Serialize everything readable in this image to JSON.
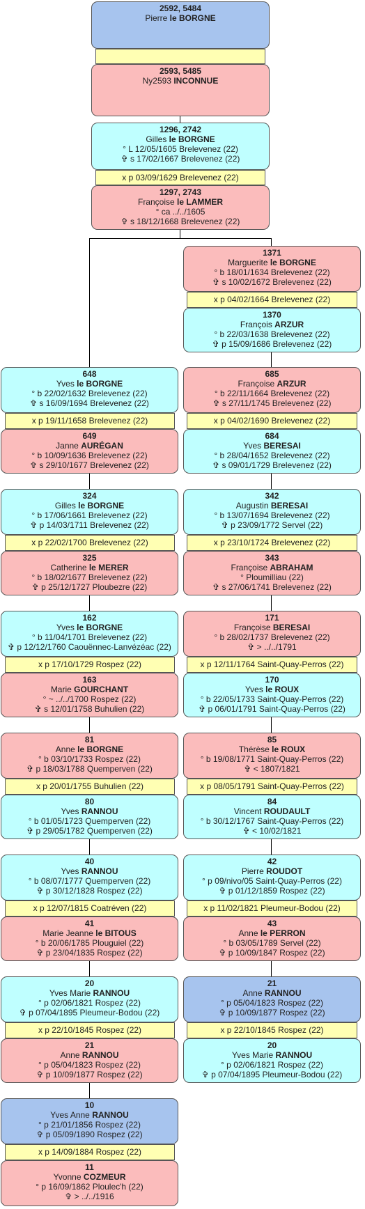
{
  "top": [
    {
      "num": "2592, 5484",
      "first": "Pierre",
      "last": "le BORGNE",
      "events": []
    },
    {
      "num": "2593, 5485",
      "first": "Ny2593",
      "last": "INCONNUE",
      "events": []
    },
    {
      "num": "1296, 2742",
      "first": "Gilles",
      "last": "le BORGNE",
      "events": [
        "° L 12/05/1605 Brelevenez (22)",
        "✞ s 17/02/1667 Brelevenez (22)"
      ]
    },
    {
      "num": "1297, 2743",
      "first": "Françoise",
      "last": "le LAMMER",
      "events": [
        "° ca ../../1605",
        "✞ s 18/12/1668 Brelevenez (22)"
      ]
    }
  ],
  "top_marriage": "x p 03/09/1629 Brelevenez (22)",
  "left": [
    {
      "num": "648",
      "first": "Yves",
      "last": "le BORGNE",
      "events": [
        "° b 22/02/1632 Brelevenez (22)",
        "✞ s 16/09/1694 Brelevenez (22)"
      ]
    },
    {
      "num": "",
      "first": "Janne",
      "last": "AURÉGAN",
      "events": [
        "° b 10/09/1636 Brelevenez (22)",
        "✞ s 29/10/1677 Brelevenez (22)"
      ]
    },
    {
      "num": "324",
      "first": "Gilles",
      "last": "le BORGNE",
      "events": [
        "° b 17/06/1661 Brelevenez (22)",
        "✞ p 14/03/1711 Brelevenez (22)"
      ]
    },
    {
      "num": "325",
      "first": "Catherine",
      "last": "le MERER",
      "events": [
        "° b 18/02/1677 Brelevenez (22)",
        "✞ p 25/12/1727 Ploubezre (22)"
      ]
    },
    {
      "num": "162",
      "first": "Yves",
      "last": "le BORGNE",
      "events": [
        "° b 11/04/1701 Brelevenez (22)",
        "✞ p 12/12/1760 Caouënnec-Lanvézéac (22)"
      ]
    },
    {
      "num": "163",
      "first": "Marie",
      "last": "GOURCHANT",
      "events": [
        "° ~ ../../1700 Rospez (22)",
        "✞ s 12/01/1758 Buhulien (22)"
      ]
    },
    {
      "num": "81",
      "first": "Anne",
      "last": "le BORGNE",
      "events": [
        "° b 03/10/1733 Rospez (22)",
        "✞ p 18/03/1788 Quemperven (22)"
      ]
    },
    {
      "num": "80",
      "first": "Yves",
      "last": "RANNOU",
      "events": [
        "° b 01/05/1723 Quemperven (22)",
        "✞ p 29/05/1782 Quemperven (22)"
      ]
    },
    {
      "num": "40",
      "first": "Yves",
      "last": "RANNOU",
      "events": [
        "° b 08/07/1777 Quemperven (22)",
        "✞ p 30/12/1828 Rospez (22)"
      ]
    },
    {
      "num": "41",
      "first": "Marie Jeanne",
      "last": "le BITOUS",
      "events": [
        "° b 20/06/1785 Plouguiel (22)",
        "✞ p 23/04/1835 Rospez (22)"
      ]
    },
    {
      "num": "20",
      "first": "Yves Marie",
      "last": "RANNOU",
      "events": [
        "° p 02/06/1821 Rospez (22)",
        "✞ p 07/04/1895 Pleumeur-Bodou (22)"
      ]
    },
    {
      "num": "21",
      "first": "Anne",
      "last": "RANNOU",
      "events": [
        "° p 05/04/1823 Rospez (22)",
        "✞ p 10/09/1877 Rospez (22)"
      ]
    },
    {
      "num": "10",
      "first": "Yves Anne",
      "last": "RANNOU",
      "events": [
        "° p 21/01/1856 Rospez (22)",
        "✞ p 05/09/1890 Rospez (22)"
      ]
    },
    {
      "num": "11",
      "first": "Yvonne",
      "last": "COZMEUR",
      "events": [
        "° p 16/09/1862 Ploulec'h (22)",
        "✞ > ../../1916"
      ]
    }
  ],
  "left_num_649": "649",
  "left_marriages": [
    "x p 19/11/1658 Brelevenez (22)",
    "x p 22/02/1700 Brelevenez (22)",
    "x p 17/10/1729 Rospez (22)",
    "x p 20/01/1755 Buhulien (22)",
    "x p 12/07/1815 Coatréven (22)",
    "x p 22/10/1845 Rospez (22)",
    "x p 14/09/1884 Rospez (22)"
  ],
  "right": [
    {
      "num": "1371",
      "first": "Marguerite",
      "last": "le BORGNE",
      "events": [
        "° b 18/01/1634 Brelevenez (22)",
        "✞ s 10/02/1672 Brelevenez (22)"
      ]
    },
    {
      "num": "1370",
      "first": "François",
      "last": "ARZUR",
      "events": [
        "° b 22/03/1638 Brelevenez (22)",
        "✞ p 15/09/1686 Brelevenez (22)"
      ]
    },
    {
      "num": "685",
      "first": "Françoise",
      "last": "ARZUR",
      "events": [
        "° b 22/11/1664 Brelevenez (22)",
        "✞ s 27/11/1745 Brelevenez (22)"
      ]
    },
    {
      "num": "684",
      "first": "Yves",
      "last": "BERESAI",
      "events": [
        "° b 28/04/1652 Brelevenez (22)",
        "✞ s 09/01/1729 Brelevenez (22)"
      ]
    },
    {
      "num": "342",
      "first": "Augustin",
      "last": "BERESAI",
      "events": [
        "° b 13/07/1694 Brelevenez (22)",
        "✞ p 23/09/1772 Servel (22)"
      ]
    },
    {
      "num": "343",
      "first": "Françoise",
      "last": "ABRAHAM",
      "events": [
        "° Ploumilliau (22)",
        "✞ s 27/06/1741 Brelevenez (22)"
      ]
    },
    {
      "num": "171",
      "first": "Françoise",
      "last": "BERESAI",
      "events": [
        "° b 28/02/1737 Brelevenez (22)",
        "✞ > ../../1791"
      ]
    },
    {
      "num": "170",
      "first": "Yves",
      "last": "le ROUX",
      "events": [
        "° b 22/05/1733 Saint-Quay-Perros (22)",
        "✞ p 06/01/1791 Saint-Quay-Perros (22)"
      ]
    },
    {
      "num": "85",
      "first": "Thérèse",
      "last": "le ROUX",
      "events": [
        "° b 19/08/1771 Saint-Quay-Perros (22)",
        "✞ <  1807/1821"
      ]
    },
    {
      "num": "84",
      "first": "Vincent",
      "last": "ROUDAULT",
      "events": [
        "° b 30/12/1767 Saint-Quay-Perros (22)",
        "✞ < 10/02/1821"
      ]
    },
    {
      "num": "42",
      "first": "Pierre",
      "last": "ROUDOT",
      "events": [
        "° p 09/nivo/05 Saint-Quay-Perros (22)",
        "✞ p 01/12/1859 Rospez (22)"
      ]
    },
    {
      "num": "43",
      "first": "Anne",
      "last": "le PERRON",
      "events": [
        "° b 03/05/1789 Servel (22)",
        "✞ p 10/09/1847 Rospez (22)"
      ]
    },
    {
      "num": "21",
      "first": "Anne",
      "last": "RANNOU",
      "events": [
        "° p 05/04/1823 Rospez (22)",
        "✞ p 10/09/1877 Rospez (22)"
      ]
    },
    {
      "num": "20",
      "first": "Yves Marie",
      "last": "RANNOU",
      "events": [
        "° p 02/06/1821 Rospez (22)",
        "✞ p 07/04/1895 Pleumeur-Bodou (22)"
      ]
    }
  ],
  "right_marriages": [
    "x p 04/02/1664 Brelevenez (22)",
    "x p 04/02/1690 Brelevenez (22)",
    "x p 23/10/1724 Brelevenez (22)",
    "x p 12/11/1764 Saint-Quay-Perros (22)",
    "x p 08/05/1791 Saint-Quay-Perros (22)",
    "x p 11/02/1821 Pleumeur-Bodou (22)",
    "x p 22/10/1845 Rospez (22)"
  ],
  "colors": {
    "male": "#bfffff",
    "female": "#fbbcbc",
    "highlight": "#a7c4ee",
    "marriage": "#ffffb3"
  }
}
